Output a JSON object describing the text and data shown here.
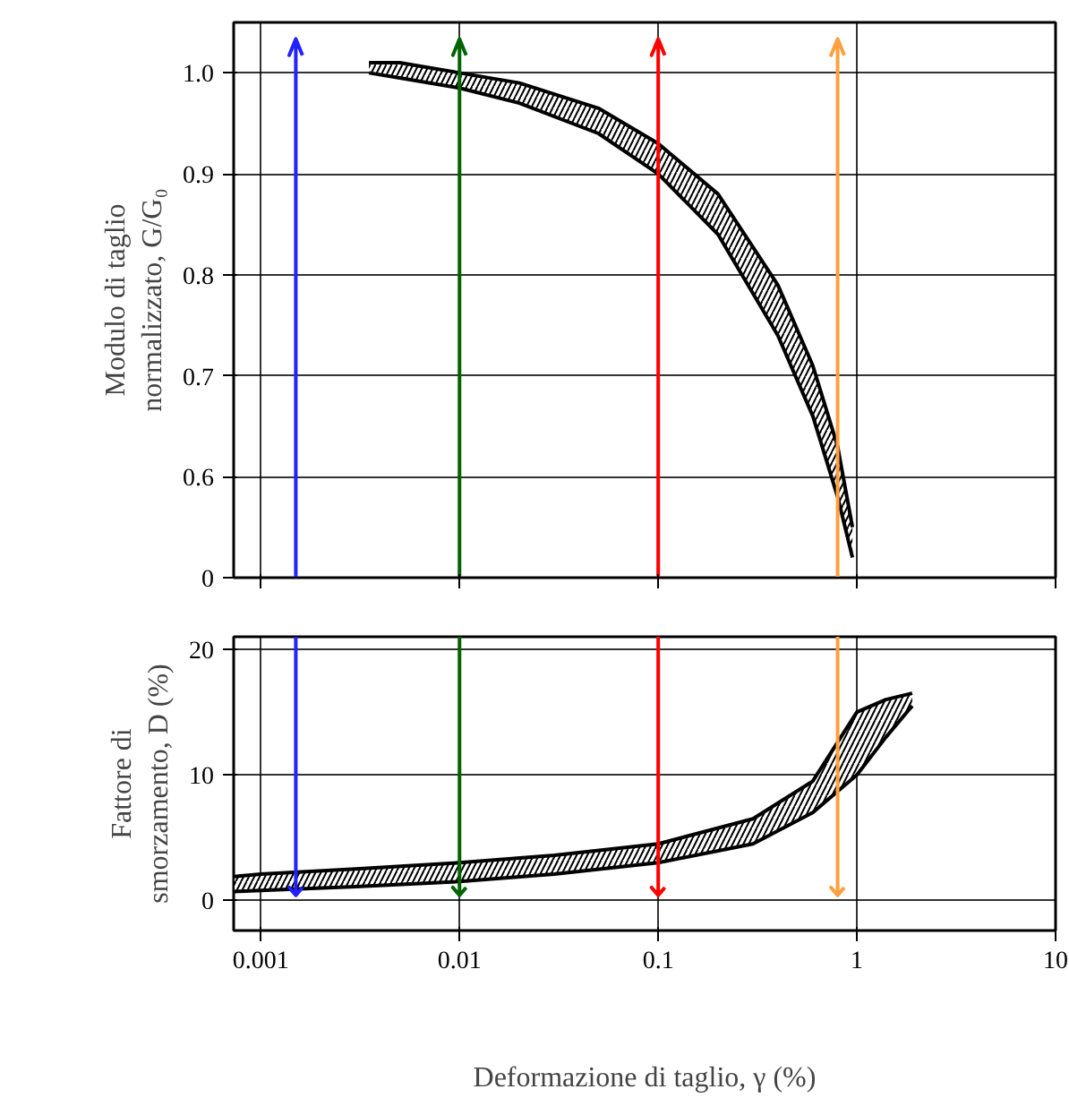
{
  "chart_data": [
    {
      "type": "area",
      "ylabel": "Modulo di taglio\nnormalizzato, G/G₀",
      "log": "x",
      "xlim": [
        0.00073,
        10
      ],
      "xticks": [
        0.001,
        0.01,
        0.1,
        1,
        10
      ],
      "ylim": [
        0.5,
        1.05
      ],
      "yticks": [
        {
          "value": 0.5,
          "label": "0"
        },
        0.6,
        0.7,
        0.8,
        0.9,
        {
          "value": 1.0,
          "label": "1.0"
        }
      ],
      "tick_labels": "y",
      "grid": true,
      "x": [
        0.0035,
        0.005,
        0.01,
        0.02,
        0.05,
        0.1,
        0.2,
        0.4,
        0.6,
        0.8,
        0.95
      ],
      "series": [
        {
          "color": "#000000",
          "values": [
            1.01,
            1.01,
            1.0,
            0.99,
            0.965,
            0.93,
            0.88,
            0.79,
            0.71,
            0.63,
            0.55
          ]
        },
        {
          "type": "line",
          "color": "#000000",
          "values": [
            1.0,
            0.995,
            0.985,
            0.97,
            0.94,
            0.9,
            0.84,
            0.74,
            0.66,
            0.58,
            0.52
          ]
        }
      ],
      "ref_lines": [
        {
          "axis": "x",
          "value": 0.0015,
          "color": "#2222ff"
        },
        {
          "axis": "x",
          "value": 0.01,
          "color": "#006400"
        },
        {
          "axis": "x",
          "value": 0.1,
          "color": "#ff0000"
        },
        {
          "axis": "x",
          "value": 0.8,
          "color": "#ffa040"
        }
      ]
    },
    {
      "type": "area",
      "xlabel": "Deformazione di taglio, γ (%)",
      "ylabel": "Fattore di\nsmorzamento, D (%)",
      "log": "x",
      "xlim": [
        0.00073,
        10
      ],
      "xticks": [
        0.001,
        0.01,
        0.1,
        1,
        10
      ],
      "ylim": [
        -2.4,
        21
      ],
      "yticks": [
        0,
        10,
        20
      ],
      "grid": true,
      "x": [
        0.00073,
        0.001,
        0.003,
        0.01,
        0.03,
        0.1,
        0.3,
        0.6,
        1.0,
        1.4,
        1.9
      ],
      "series": [
        {
          "color": "#000000",
          "values": [
            1.9,
            2.1,
            2.5,
            3,
            3.6,
            4.5,
            6.5,
            9.5,
            15,
            16,
            16.5
          ]
        },
        {
          "type": "line",
          "color": "#000000",
          "values": [
            0.7,
            0.8,
            1.1,
            1.5,
            2.1,
            3,
            4.5,
            7,
            10,
            13,
            15.5
          ]
        }
      ],
      "ref_lines": [
        {
          "axis": "x",
          "value": 0.0015,
          "color": "#2222ff"
        },
        {
          "axis": "x",
          "value": 0.01,
          "color": "#006400"
        },
        {
          "axis": "x",
          "value": 0.1,
          "color": "#ff0000"
        },
        {
          "axis": "x",
          "value": 0.8,
          "color": "#ffa040"
        }
      ]
    }
  ]
}
